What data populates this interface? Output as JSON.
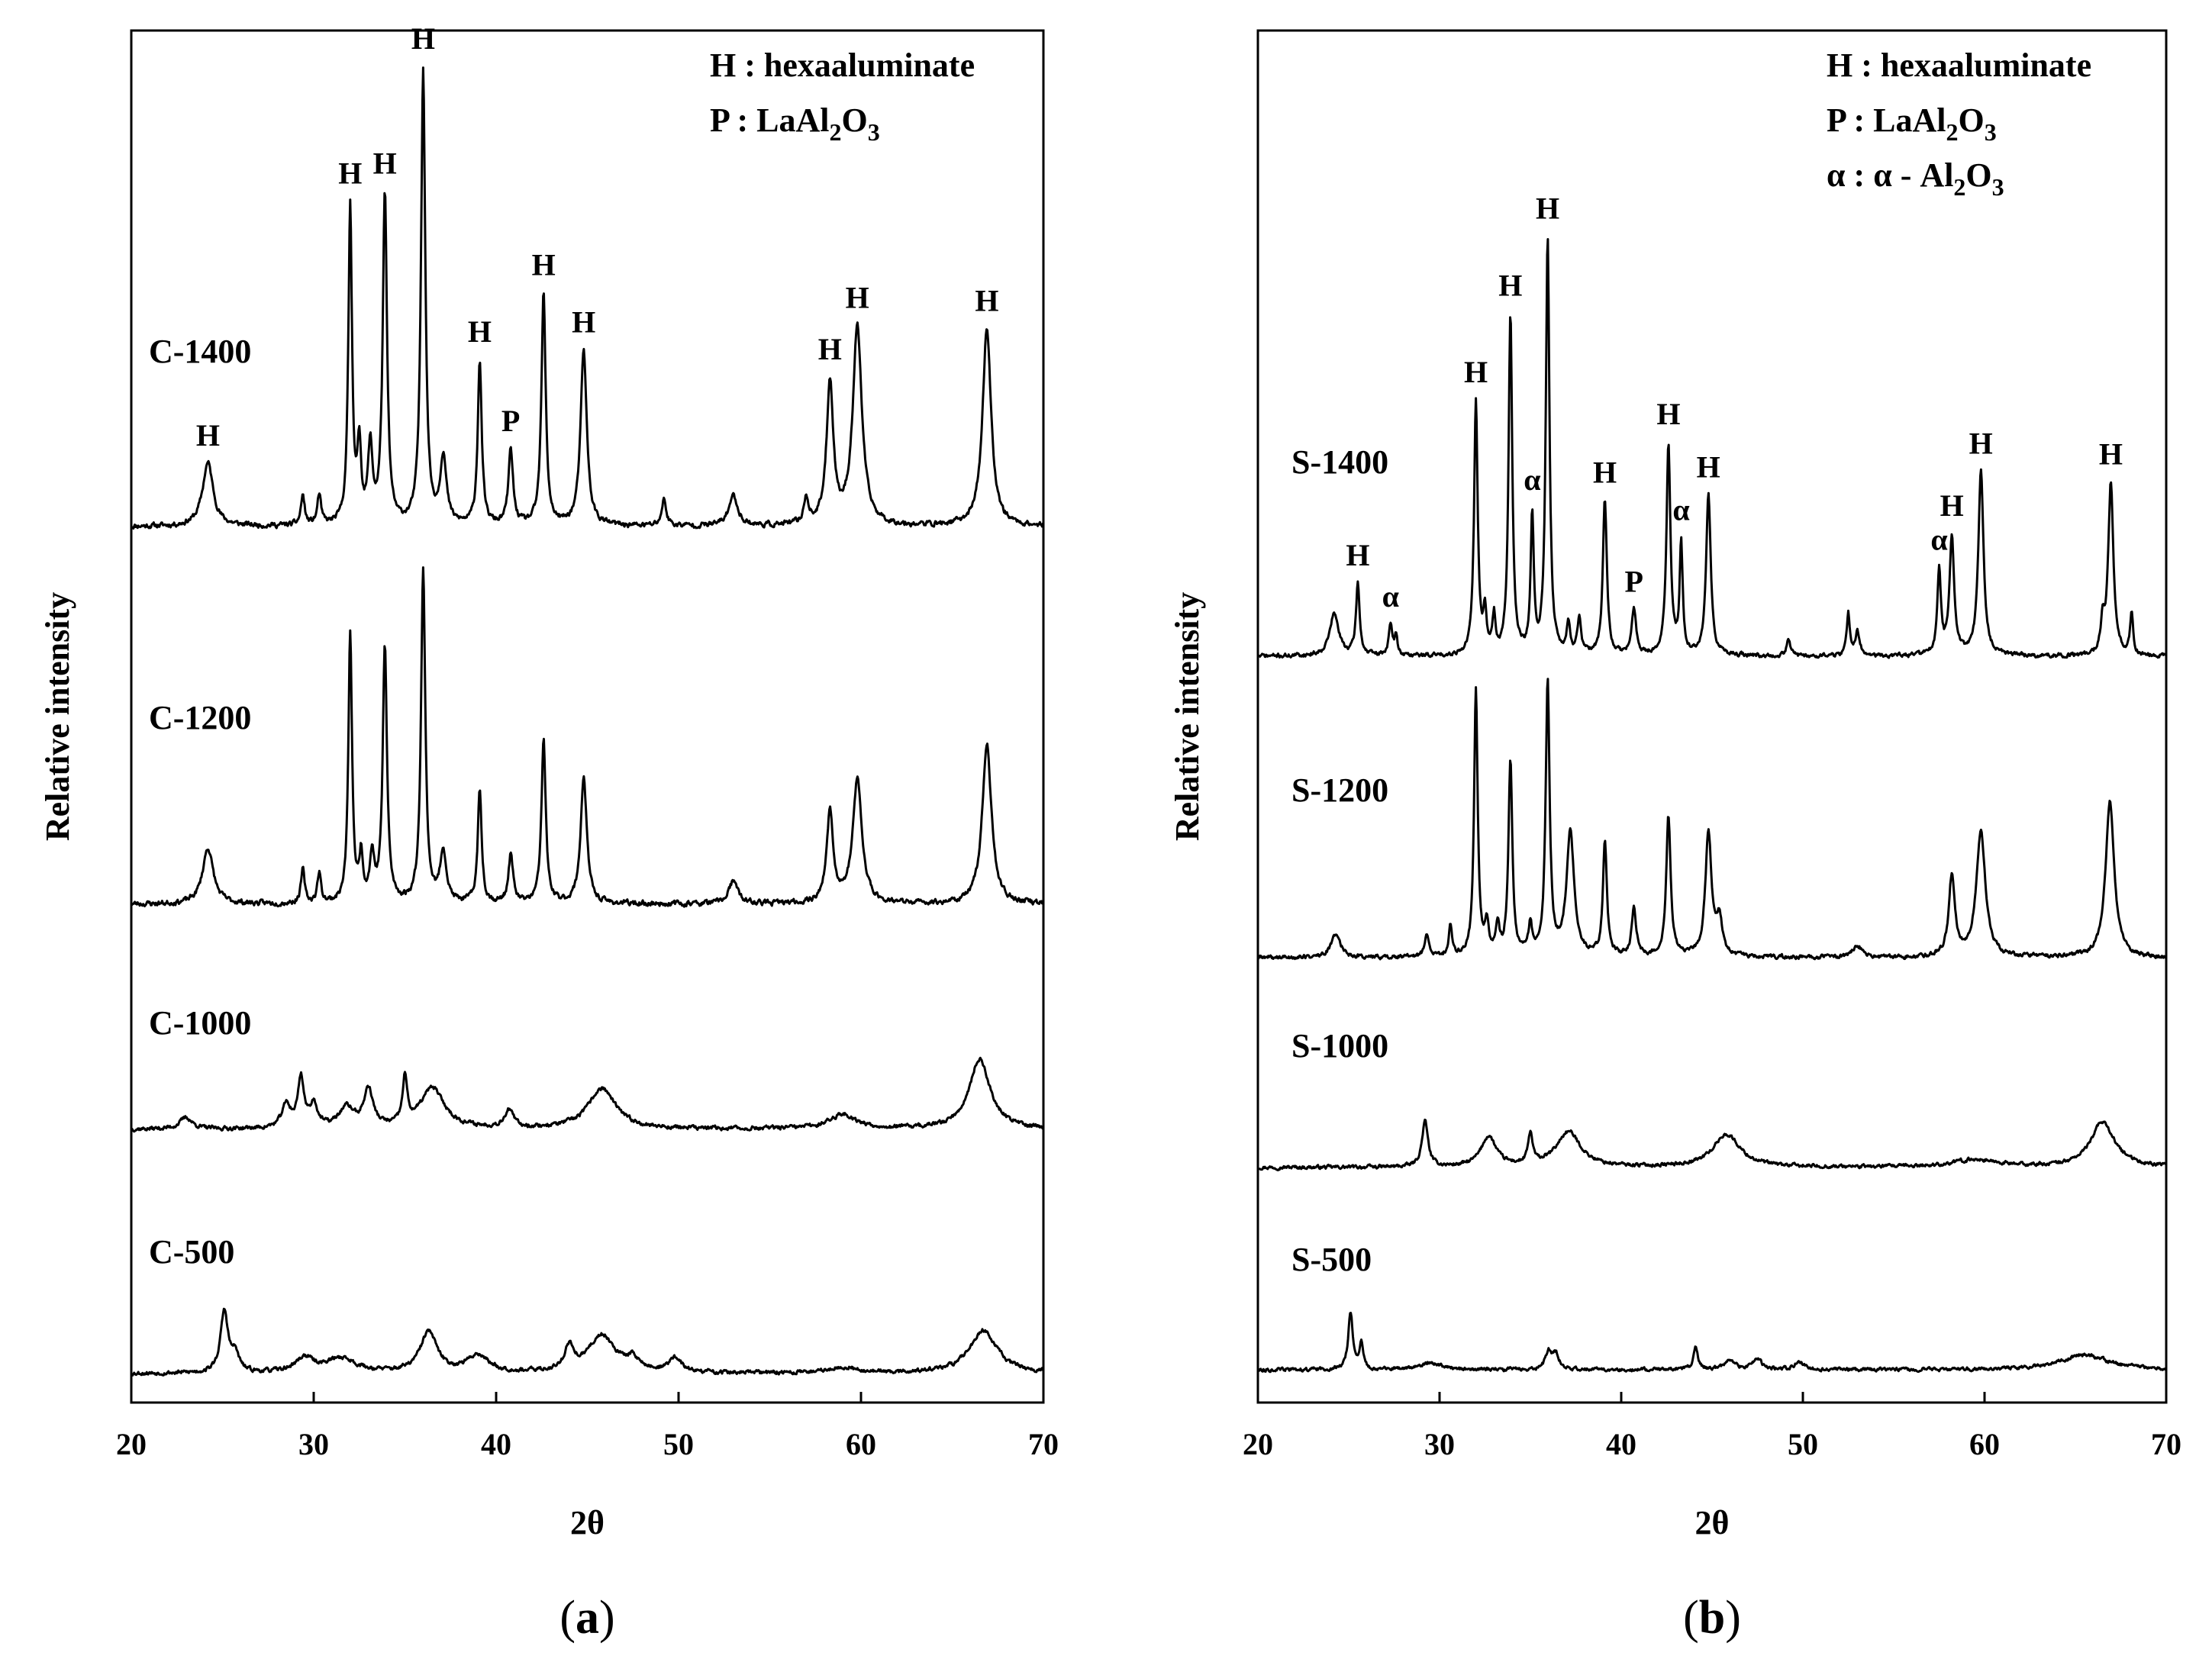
{
  "chart_data": [
    {
      "type": "line",
      "panel_label": "a",
      "xlabel": "2θ",
      "ylabel": "Relative intensity",
      "xlim": [
        20,
        70
      ],
      "xticks": [
        "20",
        "30",
        "40",
        "50",
        "60",
        "70"
      ],
      "legend": [
        {
          "key": "H",
          "desc": "hexaaluminate"
        },
        {
          "key": "P",
          "desc": "LaAl",
          "sub1": "2",
          "mid": "O",
          "sub2": "3"
        }
      ],
      "series": [
        {
          "name": "C-1400",
          "baseline": 0.0,
          "peaks": [
            {
              "x": 24.2,
              "h": 0.17,
              "w": 0.35,
              "label": "H"
            },
            {
              "x": 29.4,
              "h": 0.08,
              "w": 0.12
            },
            {
              "x": 30.3,
              "h": 0.08,
              "w": 0.12
            },
            {
              "x": 32.0,
              "h": 0.85,
              "w": 0.12,
              "label": "H"
            },
            {
              "x": 32.5,
              "h": 0.2,
              "w": 0.12
            },
            {
              "x": 33.1,
              "h": 0.2,
              "w": 0.15
            },
            {
              "x": 33.9,
              "h": 0.88,
              "w": 0.14,
              "label": "H"
            },
            {
              "x": 36.0,
              "h": 1.22,
              "w": 0.14,
              "label": "H"
            },
            {
              "x": 37.1,
              "h": 0.18,
              "w": 0.2
            },
            {
              "x": 39.1,
              "h": 0.44,
              "w": 0.13,
              "label": "H"
            },
            {
              "x": 40.8,
              "h": 0.2,
              "w": 0.15,
              "label": "P"
            },
            {
              "x": 42.6,
              "h": 0.62,
              "w": 0.14,
              "label": "H"
            },
            {
              "x": 44.8,
              "h": 0.47,
              "w": 0.2,
              "label": "H"
            },
            {
              "x": 49.2,
              "h": 0.07,
              "w": 0.15
            },
            {
              "x": 53.0,
              "h": 0.08,
              "w": 0.3
            },
            {
              "x": 57.0,
              "h": 0.07,
              "w": 0.15
            },
            {
              "x": 58.3,
              "h": 0.38,
              "w": 0.22,
              "label": "H"
            },
            {
              "x": 59.8,
              "h": 0.53,
              "w": 0.3,
              "label": "H"
            },
            {
              "x": 66.9,
              "h": 0.53,
              "w": 0.28,
              "label": "H"
            }
          ]
        },
        {
          "name": "C-1200",
          "baseline": 0.0,
          "peaks": [
            {
              "x": 24.2,
              "h": 0.15,
              "w": 0.35
            },
            {
              "x": 29.4,
              "h": 0.09,
              "w": 0.12
            },
            {
              "x": 30.3,
              "h": 0.08,
              "w": 0.12
            },
            {
              "x": 32.0,
              "h": 0.72,
              "w": 0.12
            },
            {
              "x": 32.6,
              "h": 0.12,
              "w": 0.12
            },
            {
              "x": 33.2,
              "h": 0.12,
              "w": 0.15
            },
            {
              "x": 33.9,
              "h": 0.68,
              "w": 0.14
            },
            {
              "x": 36.0,
              "h": 0.89,
              "w": 0.14
            },
            {
              "x": 37.1,
              "h": 0.14,
              "w": 0.2
            },
            {
              "x": 39.1,
              "h": 0.3,
              "w": 0.13
            },
            {
              "x": 40.8,
              "h": 0.13,
              "w": 0.15
            },
            {
              "x": 42.6,
              "h": 0.44,
              "w": 0.14
            },
            {
              "x": 44.8,
              "h": 0.34,
              "w": 0.2
            },
            {
              "x": 53.0,
              "h": 0.06,
              "w": 0.3
            },
            {
              "x": 58.3,
              "h": 0.24,
              "w": 0.22
            },
            {
              "x": 59.8,
              "h": 0.33,
              "w": 0.3
            },
            {
              "x": 66.9,
              "h": 0.43,
              "w": 0.3
            }
          ]
        },
        {
          "name": "C-1000",
          "baseline": 0.0,
          "peaks": [
            {
              "x": 23.0,
              "h": 0.04,
              "w": 0.4
            },
            {
              "x": 28.5,
              "h": 0.08,
              "w": 0.3
            },
            {
              "x": 29.3,
              "h": 0.17,
              "w": 0.2
            },
            {
              "x": 30.0,
              "h": 0.08,
              "w": 0.25
            },
            {
              "x": 31.8,
              "h": 0.07,
              "w": 0.5
            },
            {
              "x": 33.0,
              "h": 0.13,
              "w": 0.3
            },
            {
              "x": 35.0,
              "h": 0.16,
              "w": 0.15
            },
            {
              "x": 36.5,
              "h": 0.14,
              "w": 0.8
            },
            {
              "x": 40.7,
              "h": 0.06,
              "w": 0.3
            },
            {
              "x": 45.8,
              "h": 0.14,
              "w": 0.9
            },
            {
              "x": 59.0,
              "h": 0.05,
              "w": 0.9
            },
            {
              "x": 66.5,
              "h": 0.24,
              "w": 0.7
            }
          ]
        },
        {
          "name": "C-500",
          "baseline": 0.0,
          "peaks": [
            {
              "x": 25.1,
              "h": 0.21,
              "w": 0.25
            },
            {
              "x": 25.7,
              "h": 0.06,
              "w": 0.25
            },
            {
              "x": 29.5,
              "h": 0.05,
              "w": 0.6
            },
            {
              "x": 31.5,
              "h": 0.05,
              "w": 1.0
            },
            {
              "x": 36.3,
              "h": 0.14,
              "w": 0.55
            },
            {
              "x": 39.0,
              "h": 0.06,
              "w": 0.7
            },
            {
              "x": 44.0,
              "h": 0.08,
              "w": 0.3
            },
            {
              "x": 45.8,
              "h": 0.13,
              "w": 0.9
            },
            {
              "x": 47.5,
              "h": 0.04,
              "w": 0.4
            },
            {
              "x": 49.8,
              "h": 0.05,
              "w": 0.4
            },
            {
              "x": 59.0,
              "h": 0.02,
              "w": 1.0
            },
            {
              "x": 66.7,
              "h": 0.15,
              "w": 0.9
            }
          ]
        }
      ]
    },
    {
      "type": "line",
      "panel_label": "b",
      "xlabel": "2θ",
      "ylabel": "Relative intensity",
      "xlim": [
        20,
        70
      ],
      "xticks": [
        "20",
        "30",
        "40",
        "50",
        "60",
        "70"
      ],
      "legend": [
        {
          "key": "H",
          "desc": "hexaaluminate"
        },
        {
          "key": "P",
          "desc": "LaAl",
          "sub1": "2",
          "mid": "O",
          "sub2": "3"
        },
        {
          "key": "α",
          "desc": "α - Al",
          "sub1": "2",
          "mid": "O",
          "sub2": "3"
        }
      ],
      "series": [
        {
          "name": "S-1400",
          "baseline": 0.0,
          "peaks": [
            {
              "x": 24.2,
              "h": 0.14,
              "w": 0.3
            },
            {
              "x": 25.5,
              "h": 0.24,
              "w": 0.12,
              "label": "H"
            },
            {
              "x": 27.3,
              "h": 0.1,
              "w": 0.12,
              "label": "α"
            },
            {
              "x": 27.6,
              "h": 0.06,
              "w": 0.1
            },
            {
              "x": 32.0,
              "h": 0.85,
              "w": 0.12,
              "label": "H"
            },
            {
              "x": 32.5,
              "h": 0.14,
              "w": 0.1
            },
            {
              "x": 33.0,
              "h": 0.12,
              "w": 0.1
            },
            {
              "x": 33.9,
              "h": 1.14,
              "w": 0.12,
              "label": "H"
            },
            {
              "x": 35.1,
              "h": 0.46,
              "w": 0.1,
              "label": "α"
            },
            {
              "x": 35.95,
              "h": 1.4,
              "w": 0.12,
              "label": "H"
            },
            {
              "x": 37.1,
              "h": 0.1,
              "w": 0.12
            },
            {
              "x": 37.7,
              "h": 0.12,
              "w": 0.12
            },
            {
              "x": 39.1,
              "h": 0.52,
              "w": 0.13,
              "label": "H"
            },
            {
              "x": 40.7,
              "h": 0.15,
              "w": 0.15,
              "label": "P"
            },
            {
              "x": 42.6,
              "h": 0.71,
              "w": 0.13,
              "label": "H"
            },
            {
              "x": 43.3,
              "h": 0.37,
              "w": 0.1,
              "label": "α"
            },
            {
              "x": 44.8,
              "h": 0.54,
              "w": 0.15,
              "label": "H"
            },
            {
              "x": 49.2,
              "h": 0.06,
              "w": 0.12
            },
            {
              "x": 52.5,
              "h": 0.14,
              "w": 0.1
            },
            {
              "x": 53.0,
              "h": 0.08,
              "w": 0.15
            },
            {
              "x": 57.5,
              "h": 0.28,
              "w": 0.12,
              "label": "α"
            },
            {
              "x": 58.2,
              "h": 0.4,
              "w": 0.15,
              "label": "H"
            },
            {
              "x": 59.8,
              "h": 0.62,
              "w": 0.17,
              "label": "H"
            },
            {
              "x": 66.5,
              "h": 0.1,
              "w": 0.12
            },
            {
              "x": 66.95,
              "h": 0.58,
              "w": 0.17,
              "label": "H"
            },
            {
              "x": 68.1,
              "h": 0.14,
              "w": 0.1
            }
          ]
        },
        {
          "name": "S-1200",
          "baseline": 0.0,
          "peaks": [
            {
              "x": 24.3,
              "h": 0.08,
              "w": 0.3
            },
            {
              "x": 29.3,
              "h": 0.07,
              "w": 0.15
            },
            {
              "x": 30.6,
              "h": 0.1,
              "w": 0.12
            },
            {
              "x": 32.0,
              "h": 0.9,
              "w": 0.12
            },
            {
              "x": 32.6,
              "h": 0.1,
              "w": 0.12
            },
            {
              "x": 33.2,
              "h": 0.1,
              "w": 0.12
            },
            {
              "x": 33.9,
              "h": 0.65,
              "w": 0.13
            },
            {
              "x": 35.0,
              "h": 0.1,
              "w": 0.12
            },
            {
              "x": 35.95,
              "h": 0.92,
              "w": 0.13
            },
            {
              "x": 37.2,
              "h": 0.42,
              "w": 0.25
            },
            {
              "x": 39.1,
              "h": 0.38,
              "w": 0.13
            },
            {
              "x": 40.7,
              "h": 0.16,
              "w": 0.15
            },
            {
              "x": 42.6,
              "h": 0.47,
              "w": 0.15
            },
            {
              "x": 44.8,
              "h": 0.42,
              "w": 0.2
            },
            {
              "x": 45.4,
              "h": 0.12,
              "w": 0.2
            },
            {
              "x": 53.0,
              "h": 0.04,
              "w": 0.3
            },
            {
              "x": 58.2,
              "h": 0.27,
              "w": 0.2
            },
            {
              "x": 59.8,
              "h": 0.42,
              "w": 0.3
            },
            {
              "x": 66.9,
              "h": 0.53,
              "w": 0.28
            }
          ]
        },
        {
          "name": "S-1000",
          "baseline": 0.0,
          "peaks": [
            {
              "x": 29.2,
              "h": 0.18,
              "w": 0.2
            },
            {
              "x": 32.7,
              "h": 0.12,
              "w": 0.5
            },
            {
              "x": 35.0,
              "h": 0.12,
              "w": 0.15
            },
            {
              "x": 37.1,
              "h": 0.14,
              "w": 0.8
            },
            {
              "x": 45.8,
              "h": 0.13,
              "w": 0.9
            },
            {
              "x": 59.5,
              "h": 0.03,
              "w": 1.5
            },
            {
              "x": 66.5,
              "h": 0.18,
              "w": 0.8
            }
          ]
        },
        {
          "name": "S-500",
          "baseline": 0.0,
          "peaks": [
            {
              "x": 25.1,
              "h": 0.23,
              "w": 0.15
            },
            {
              "x": 25.7,
              "h": 0.1,
              "w": 0.12
            },
            {
              "x": 29.5,
              "h": 0.03,
              "w": 0.6
            },
            {
              "x": 36.0,
              "h": 0.07,
              "w": 0.2
            },
            {
              "x": 36.4,
              "h": 0.06,
              "w": 0.2
            },
            {
              "x": 44.1,
              "h": 0.09,
              "w": 0.15
            },
            {
              "x": 46.0,
              "h": 0.04,
              "w": 0.3
            },
            {
              "x": 47.5,
              "h": 0.04,
              "w": 0.3
            },
            {
              "x": 49.8,
              "h": 0.03,
              "w": 0.3
            },
            {
              "x": 65.5,
              "h": 0.06,
              "w": 1.5
            }
          ]
        }
      ]
    }
  ]
}
